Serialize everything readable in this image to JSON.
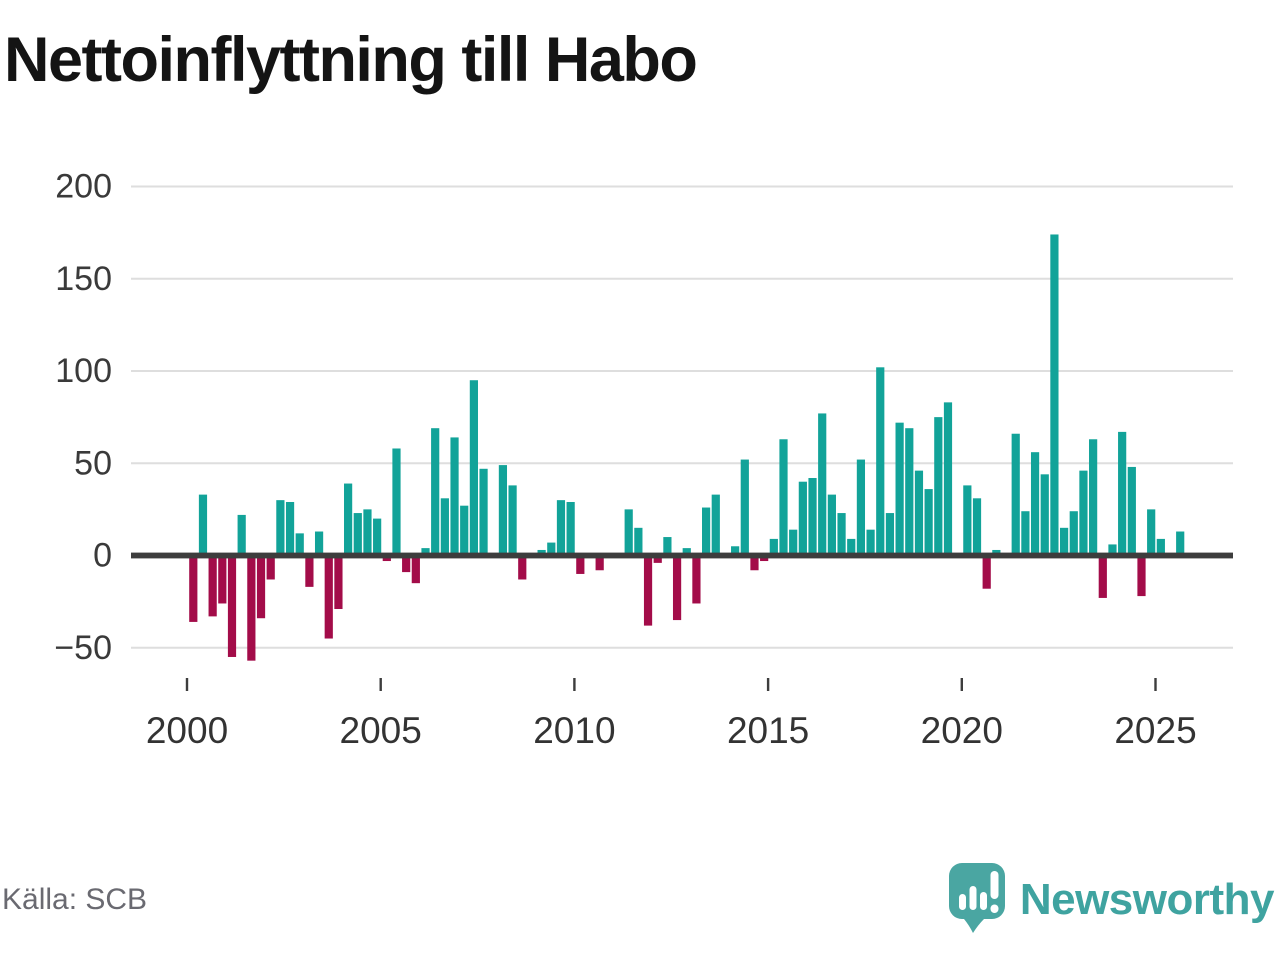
{
  "title": "Nettoinflyttning till Habo",
  "source": "Källa: SCB",
  "logo": {
    "text": "Newsworthy"
  },
  "colors": {
    "positive": "#12a399",
    "negative": "#a30c49",
    "axis": "#3d3d3d",
    "grid": "#dedede",
    "y_label": "#3a3a3a",
    "x_label": "#333333",
    "source_text": "#6a6a71",
    "logo_teal": "#4aa6a2",
    "logo_text": "#3fa3a0"
  },
  "chart_data": {
    "type": "bar",
    "title": "Nettoinflyttning till Habo",
    "frequency": "quarterly",
    "start": "2000Q1",
    "end": "2025Q3",
    "grid": true,
    "ylim": [
      -75,
      215
    ],
    "yticks": [
      200,
      150,
      100,
      50,
      0,
      -50
    ],
    "ytick_labels": [
      "200",
      "150",
      "100",
      "50",
      "0",
      "−50"
    ],
    "xticks": [
      2000,
      2005,
      2010,
      2015,
      2020,
      2025
    ],
    "xtick_labels": [
      "2000",
      "2005",
      "2010",
      "2015",
      "2020",
      "2025"
    ],
    "categories": [
      "2000Q1",
      "2000Q2",
      "2000Q3",
      "2000Q4",
      "2001Q1",
      "2001Q2",
      "2001Q3",
      "2001Q4",
      "2002Q1",
      "2002Q2",
      "2002Q3",
      "2002Q4",
      "2003Q1",
      "2003Q2",
      "2003Q3",
      "2003Q4",
      "2004Q1",
      "2004Q2",
      "2004Q3",
      "2004Q4",
      "2005Q1",
      "2005Q2",
      "2005Q3",
      "2005Q4",
      "2006Q1",
      "2006Q2",
      "2006Q3",
      "2006Q4",
      "2007Q1",
      "2007Q2",
      "2007Q3",
      "2007Q4",
      "2008Q1",
      "2008Q2",
      "2008Q3",
      "2008Q4",
      "2009Q1",
      "2009Q2",
      "2009Q3",
      "2009Q4",
      "2010Q1",
      "2010Q2",
      "2010Q3",
      "2010Q4",
      "2011Q1",
      "2011Q2",
      "2011Q3",
      "2011Q4",
      "2012Q1",
      "2012Q2",
      "2012Q3",
      "2012Q4",
      "2013Q1",
      "2013Q2",
      "2013Q3",
      "2013Q4",
      "2014Q1",
      "2014Q2",
      "2014Q3",
      "2014Q4",
      "2015Q1",
      "2015Q2",
      "2015Q3",
      "2015Q4",
      "2016Q1",
      "2016Q2",
      "2016Q3",
      "2016Q4",
      "2017Q1",
      "2017Q2",
      "2017Q3",
      "2017Q4",
      "2018Q1",
      "2018Q2",
      "2018Q3",
      "2018Q4",
      "2019Q1",
      "2019Q2",
      "2019Q3",
      "2019Q4",
      "2020Q1",
      "2020Q2",
      "2020Q3",
      "2020Q4",
      "2021Q1",
      "2021Q2",
      "2021Q3",
      "2021Q4",
      "2022Q1",
      "2022Q2",
      "2022Q3",
      "2022Q4",
      "2023Q1",
      "2023Q2",
      "2023Q3",
      "2023Q4",
      "2024Q1",
      "2024Q2",
      "2024Q3",
      "2024Q4",
      "2025Q1",
      "2025Q2",
      "2025Q3"
    ],
    "values": [
      -36,
      33,
      -33,
      -26,
      -55,
      22,
      -57,
      -34,
      -13,
      30,
      29,
      12,
      -17,
      13,
      -45,
      -29,
      39,
      23,
      25,
      20,
      -3,
      58,
      -9,
      -15,
      4,
      69,
      31,
      64,
      27,
      95,
      47,
      0,
      49,
      38,
      -13,
      0,
      3,
      7,
      30,
      29,
      -10,
      0,
      -8,
      0,
      0,
      25,
      15,
      -38,
      -4,
      10,
      -35,
      4,
      -26,
      26,
      33,
      0,
      5,
      52,
      -8,
      -3,
      9,
      63,
      14,
      40,
      42,
      77,
      33,
      23,
      9,
      52,
      14,
      102,
      23,
      72,
      69,
      46,
      36,
      75,
      83,
      0,
      38,
      31,
      -18,
      3,
      0,
      66,
      24,
      56,
      44,
      174,
      15,
      24,
      46,
      63,
      -23,
      6,
      67,
      48,
      -22,
      25,
      9,
      0,
      13
    ]
  }
}
